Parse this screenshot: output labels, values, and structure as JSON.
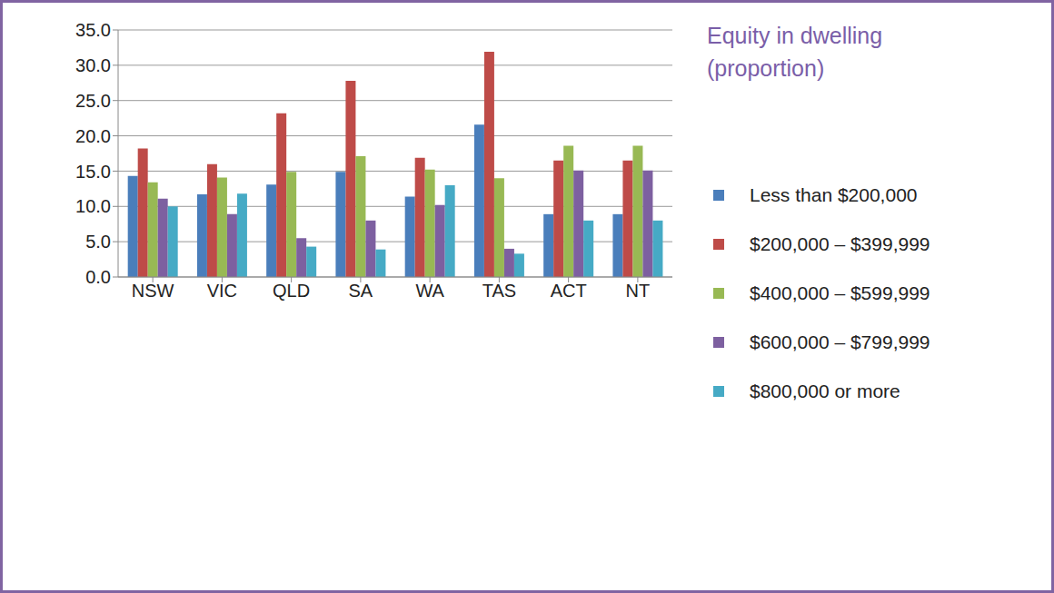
{
  "chart_data": {
    "type": "bar",
    "title": "Equity in dwelling (proportion)",
    "categories": [
      "NSW",
      "VIC",
      "QLD",
      "SA",
      "WA",
      "TAS",
      "ACT",
      "NT"
    ],
    "series": [
      {
        "name": "Less than $200,000",
        "color": "#4a7ebb",
        "values": [
          14.3,
          11.7,
          13.1,
          14.9,
          11.4,
          21.6,
          8.9,
          8.9
        ]
      },
      {
        "name": "$200,000 – $399,999",
        "color": "#be4b48",
        "values": [
          18.2,
          16.0,
          23.2,
          27.8,
          16.9,
          31.9,
          16.5,
          16.5
        ]
      },
      {
        "name": "$400,000 – $599,999",
        "color": "#98b954",
        "values": [
          13.4,
          14.1,
          14.9,
          17.1,
          15.2,
          14.0,
          18.6,
          18.6
        ]
      },
      {
        "name": "$600,000 – $799,999",
        "color": "#7d60a0",
        "values": [
          11.1,
          8.9,
          5.5,
          8.0,
          10.2,
          4.0,
          15.1,
          15.1
        ]
      },
      {
        "name": "$800,000 or more",
        "color": "#46aac5",
        "values": [
          10.0,
          11.8,
          4.3,
          3.9,
          13.0,
          3.3,
          8.0,
          8.0
        ]
      }
    ],
    "ylim": [
      0,
      35
    ],
    "yticks": [
      {
        "value": 0,
        "label": "0.0"
      },
      {
        "value": 5,
        "label": "5.0"
      },
      {
        "value": 10,
        "label": "10.0"
      },
      {
        "value": 15,
        "label": "15.0"
      },
      {
        "value": 20,
        "label": "20.0"
      },
      {
        "value": 25,
        "label": "25.0"
      },
      {
        "value": 30,
        "label": "30.0"
      },
      {
        "value": 35,
        "label": "35.0"
      }
    ],
    "grid": true,
    "legend": "right"
  }
}
